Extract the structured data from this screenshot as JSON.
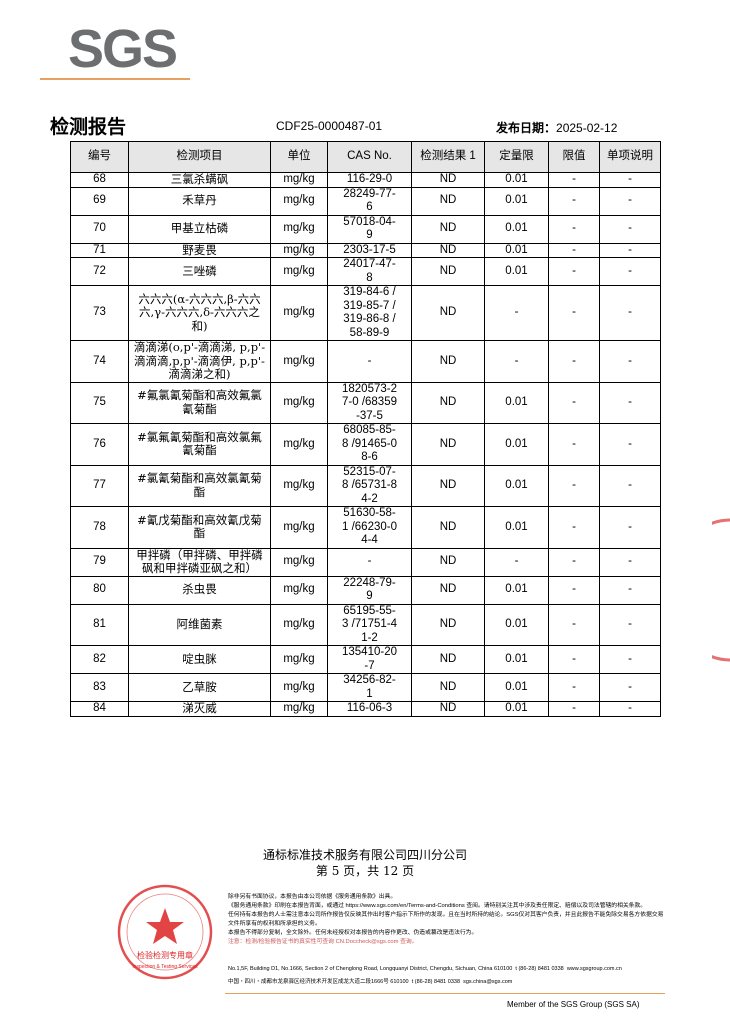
{
  "header": {
    "logo": "SGS",
    "title": "检测报告",
    "report_no": "CDF25-0000487-01",
    "date_label": "发布日期：",
    "date": "2025-02-12"
  },
  "table": {
    "columns": [
      "编号",
      "检测项目",
      "单位",
      "CAS No.",
      "检测结果 1",
      "定量限",
      "限值",
      "单项说明"
    ],
    "rows": [
      [
        "68",
        "三氯杀螨砜",
        "mg/kg",
        "116-29-0",
        "ND",
        "0.01",
        "-",
        "-"
      ],
      [
        "69",
        "禾草丹",
        "mg/kg",
        "28249-77-6",
        "ND",
        "0.01",
        "-",
        "-"
      ],
      [
        "70",
        "甲基立枯磷",
        "mg/kg",
        "57018-04-9",
        "ND",
        "0.01",
        "-",
        "-"
      ],
      [
        "71",
        "野麦畏",
        "mg/kg",
        "2303-17-5",
        "ND",
        "0.01",
        "-",
        "-"
      ],
      [
        "72",
        "三唑磷",
        "mg/kg",
        "24017-47-8",
        "ND",
        "0.01",
        "-",
        "-"
      ],
      [
        "73",
        "六六六(α-六六六,β-六六六,γ-六六六,δ-六六六之和)",
        "mg/kg",
        "319-84-6 /319-85-7 /319-86-8 /58-89-9",
        "ND",
        "-",
        "-",
        "-"
      ],
      [
        "74",
        "滴滴涕(o,p'-滴滴涕, p,p'-滴滴滴,p,p'-滴滴伊, p,p'-滴滴涕之和)",
        "mg/kg",
        "-",
        "ND",
        "-",
        "-",
        "-"
      ],
      [
        "75",
        "#氟氯氰菊酯和高效氟氯氰菊酯",
        "mg/kg",
        "1820573-27-0 /68359-37-5",
        "ND",
        "0.01",
        "-",
        "-"
      ],
      [
        "76",
        "#氯氟氰菊酯和高效氯氟氰菊酯",
        "mg/kg",
        "68085-85-8 /91465-08-6",
        "ND",
        "0.01",
        "-",
        "-"
      ],
      [
        "77",
        "#氯氰菊酯和高效氯氰菊酯",
        "mg/kg",
        "52315-07-8 /65731-84-2",
        "ND",
        "0.01",
        "-",
        "-"
      ],
      [
        "78",
        "#氰戊菊酯和高效氰戊菊酯",
        "mg/kg",
        "51630-58-1 /66230-04-4",
        "ND",
        "0.01",
        "-",
        "-"
      ],
      [
        "79",
        "甲拌磷（甲拌磷、甲拌磷砜和甲拌磷亚砜之和）",
        "mg/kg",
        "-",
        "ND",
        "-",
        "-",
        "-"
      ],
      [
        "80",
        "杀虫畏",
        "mg/kg",
        "22248-79-9",
        "ND",
        "0.01",
        "-",
        "-"
      ],
      [
        "81",
        "阿维菌素",
        "mg/kg",
        "65195-55-3 /71751-41-2",
        "ND",
        "0.01",
        "-",
        "-"
      ],
      [
        "82",
        "啶虫脒",
        "mg/kg",
        "135410-20-7",
        "ND",
        "0.01",
        "-",
        "-"
      ],
      [
        "83",
        "乙草胺",
        "mg/kg",
        "34256-82-1",
        "ND",
        "0.01",
        "-",
        "-"
      ],
      [
        "84",
        "涕灭威",
        "mg/kg",
        "116-06-3",
        "ND",
        "0.01",
        "-",
        "-"
      ]
    ]
  },
  "footer": {
    "company": "通标标准技术服务有限公司四川分公司",
    "page": "第 5 页，共 12 页",
    "fine_print": [
      "除非另有书面协议，本报告由本公司依据《服务通用条款》出具。",
      "《服务通用条款》印刷在本报告背面，或通过 https://www.sgs.com/en/Terms-and-Conditions 查阅。请特别关注其中涉及责任限定、赔偿以及司法管辖的相关条款。",
      "任何持有本报告的人士需注意本公司所作报告仅反映其作出时客户指示下所作的发现，且在当时所持的结论。SGS仅对其客户负责，并且此报告不能免除交易各方依据交易文件所享有的权利和所承担的义务。",
      "本报告不得部分复制，全文除外。任何未经授权对本报告的内容作更改、伪造或篡改是违法行为。",
      "注意：检测/检验报告证书的真实性可查询 CN.Doccheck@sgs.com 查询。"
    ],
    "address1": "No.1,5F, Building D1, No.1666, Section 2 of Chenglong Road, Longquanyi District, Chengdu, Sichuan, China 610100",
    "phone1": "t (86-28) 8481 0338",
    "web1": "www.sgsgroup.com.cn",
    "address2": "中国・四川・成都市龙泉驿区经济技术开发区成龙大道二段1666号 610100",
    "phone2": "t (86-28) 8481 0338",
    "web2": "sgs.china@sgs.com",
    "member": "Member of the SGS Group (SGS SA)",
    "stamp_cn": "检验检测专用章",
    "stamp_en": "Inspection & Testing Services"
  }
}
